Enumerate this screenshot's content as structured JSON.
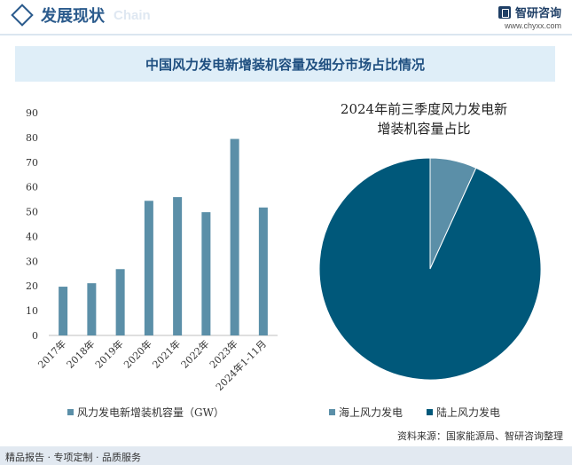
{
  "header": {
    "title": "发展现状",
    "title_en": "Chain",
    "logo_name": "智研咨询",
    "logo_url": "www.chyxx.com"
  },
  "banner_title": "中国风力发电新增装机容量及细分市场占比情况",
  "footer": {
    "left": "精品报告 · 专项定制 · 品质服务",
    "source": "资料来源：国家能源局、智研咨询整理"
  },
  "colors": {
    "bar": "#5b8fa8",
    "offshore": "#5b8fa8",
    "onshore": "#00587a"
  },
  "chart_data": [
    {
      "type": "bar",
      "categories": [
        "2017年",
        "2018年",
        "2019年",
        "2020年",
        "2021年",
        "2022年",
        "2023年",
        "2024年1-11月"
      ],
      "series": [
        {
          "name": "风力发电新增装机容量（GW）",
          "values": [
            19.7,
            21.1,
            26.8,
            54.4,
            55.9,
            49.8,
            79.4,
            51.7
          ]
        }
      ],
      "yticks": [
        "0",
        "10",
        "20",
        "30",
        "40",
        "50",
        "60",
        "70",
        "80",
        "90"
      ],
      "ylim": [
        0,
        90
      ],
      "grid": false,
      "legend": "bottom"
    },
    {
      "type": "pie",
      "title_lines": [
        "2024年前三季度风力发电新",
        "增装机容量占比"
      ],
      "labels": [
        "海上风力发电",
        "陆上风力发电"
      ],
      "values": [
        6.8,
        93.2
      ],
      "legend": "bottom"
    }
  ]
}
